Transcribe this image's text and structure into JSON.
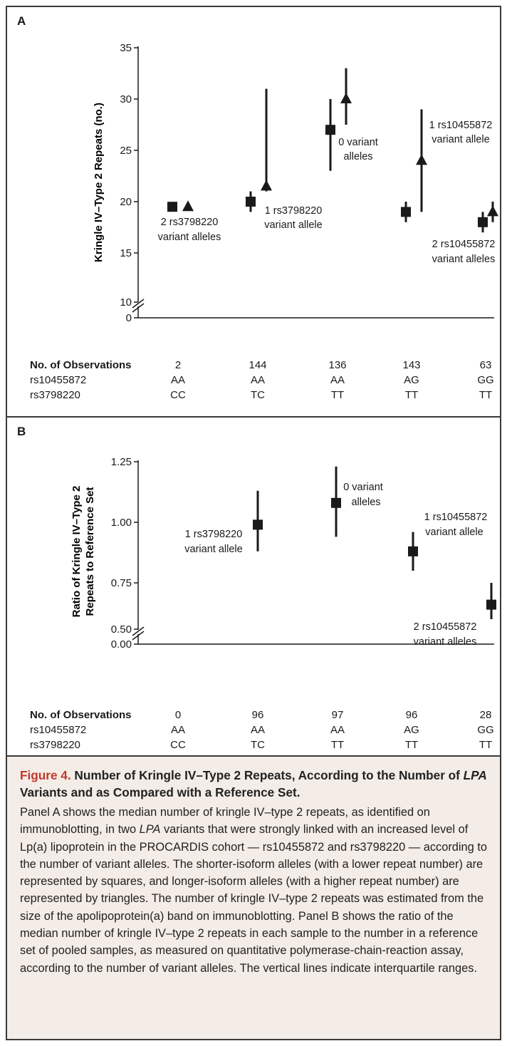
{
  "panel_a": {
    "letter": "A",
    "ylabel": "Kringle IV–Type 2 Repeats (no.)",
    "yticks": [
      "35",
      "30",
      "25",
      "20",
      "15",
      "10",
      "0"
    ],
    "annotations": [
      "2 rs3798220",
      "variant alleles",
      "1 rs3798220",
      "variant allele",
      "0 variant",
      "alleles",
      "1 rs10455872",
      "variant allele",
      "2 rs10455872",
      "variant alleles"
    ],
    "obs_header": "No. of Observations",
    "row1_label": "rs10455872",
    "row2_label": "rs3798220",
    "obs": [
      "2",
      "144",
      "136",
      "143",
      "63"
    ],
    "row1": [
      "AA",
      "AA",
      "AA",
      "AG",
      "GG"
    ],
    "row2": [
      "CC",
      "TC",
      "TT",
      "TT",
      "TT"
    ]
  },
  "panel_b": {
    "letter": "B",
    "ylabel_line1": "Ratio of Kringle IV–Type 2",
    "ylabel_line2": "Repeats to Reference Set",
    "yticks": [
      "1.25",
      "1.00",
      "0.75",
      "0.50",
      "0.00"
    ],
    "annotations": [
      "1 rs3798220",
      "variant allele",
      "0 variant",
      "alleles",
      "1 rs10455872",
      "variant allele",
      "2 rs10455872",
      "variant alleles"
    ],
    "obs_header": "No. of Observations",
    "row1_label": "rs10455872",
    "row2_label": "rs3798220",
    "obs": [
      "0",
      "96",
      "97",
      "96",
      "28"
    ],
    "row1": [
      "AA",
      "AA",
      "AA",
      "AG",
      "GG"
    ],
    "row2": [
      "CC",
      "TC",
      "TT",
      "TT",
      "TT"
    ]
  },
  "caption": {
    "figure_label": "Figure 4.",
    "title_part1": " Number of Kringle IV–Type 2 Repeats, According to the Number of ",
    "title_italic": "LPA",
    "title_part2": " Variants and as Compared with a Reference Set.",
    "body_part1": "Panel A shows the median number of kringle IV–type 2 repeats, as identified on immunoblotting, in two ",
    "body_italic": "LPA",
    "body_part2": " variants that were strongly linked with an increased level of Lp(a) lipoprotein in the PROCARDIS cohort — rs10455872 and rs3798220 — according to the number of variant alleles. The shorter-isoform alleles (with a lower repeat number) are represented by squares, and longer-isoform alleles (with a higher repeat number) are represented by triangles. The number of kringle IV–type 2 repeats was estimated from the size of the apolipoprotein(a) band on immunoblotting. Panel B shows the ratio of the median number of kringle IV–type 2 repeats in each sample to the number in a reference set of pooled samples, as measured on quantitative polymerase-chain-reaction assay, according to the number of variant alleles. The vertical lines indicate interquartile ranges."
  },
  "colors": {
    "ink": "#1a1a1a",
    "caption_bg": "#f4ece6",
    "figure_label": "#c0392b"
  },
  "chart_data": [
    {
      "type": "scatter",
      "title": "",
      "ylabel": "Kringle IV–Type 2 Repeats (no.)",
      "ylim": [
        10,
        35
      ],
      "y_axis_break": "0 to 10",
      "categories": [
        "AA/CC",
        "AA/TC",
        "AA/TT",
        "AG/TT",
        "GG/TT"
      ],
      "series": [
        {
          "name": "Shorter isoform (squares)",
          "marker": "square",
          "values": [
            19.5,
            20,
            27,
            19,
            18
          ],
          "range_low": [
            19.5,
            19,
            23,
            18,
            17
          ],
          "range_high": [
            19.5,
            21,
            30,
            20,
            19
          ]
        },
        {
          "name": "Longer isoform (triangles)",
          "marker": "triangle",
          "values": [
            19.5,
            21.5,
            30,
            24,
            19
          ],
          "range_low": [
            19.5,
            21,
            27.5,
            19,
            18
          ],
          "range_high": [
            19.5,
            31,
            33,
            29,
            20
          ]
        }
      ]
    },
    {
      "type": "scatter",
      "title": "",
      "ylabel": "Ratio of Kringle IV–Type 2 Repeats to Reference Set",
      "ylim": [
        0.5,
        1.25
      ],
      "y_axis_break": "0.00 to 0.50",
      "categories": [
        "AA/TC",
        "AA/TT",
        "AG/TT",
        "GG/TT"
      ],
      "series": [
        {
          "name": "Ratio",
          "marker": "square",
          "values": [
            0.99,
            1.08,
            0.88,
            0.66
          ],
          "range_low": [
            0.88,
            0.94,
            0.8,
            0.6
          ],
          "range_high": [
            1.13,
            1.23,
            0.96,
            0.75
          ]
        }
      ]
    }
  ]
}
